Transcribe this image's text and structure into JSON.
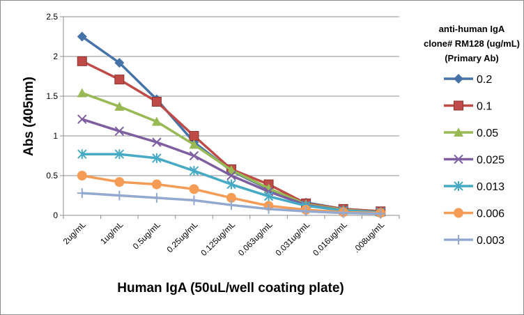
{
  "chart_data": {
    "type": "line",
    "title": "",
    "xlabel": "Human IgA (50uL/well coating plate)",
    "ylabel": "Abs (405nm)",
    "categories": [
      "2ug/mL",
      "1ug/mL",
      "0.5ug/mL",
      "0.25ug/mL",
      "0.125ug/mL",
      "0.063ug/mL",
      "0.031ug/mL",
      "0.016ug/mL",
      ".008ug/mL"
    ],
    "ylim": [
      0,
      2.5
    ],
    "yticks": [
      "0",
      "0.5",
      "1",
      "1.5",
      "2",
      "2.5"
    ],
    "grid": true,
    "legend": {
      "placement": "right",
      "title_lines": [
        "anti-human IgA",
        "clone# RM128 (ug/mL)",
        "(Primary Ab)"
      ]
    },
    "series": [
      {
        "name": "0.2",
        "color": "#4572A7",
        "marker": "diamond",
        "values": [
          2.25,
          1.92,
          1.46,
          0.92,
          0.56,
          0.33,
          0.16,
          0.08,
          0.05
        ]
      },
      {
        "name": "0.1",
        "color": "#BE4B48",
        "marker": "square",
        "values": [
          1.94,
          1.71,
          1.43,
          1.0,
          0.58,
          0.39,
          0.15,
          0.08,
          0.05
        ]
      },
      {
        "name": "0.05",
        "color": "#98B954",
        "marker": "triangle",
        "values": [
          1.54,
          1.37,
          1.18,
          0.89,
          0.57,
          0.34,
          0.14,
          0.07,
          0.04
        ]
      },
      {
        "name": "0.025",
        "color": "#7D5FA0",
        "marker": "x",
        "values": [
          1.21,
          1.06,
          0.92,
          0.75,
          0.5,
          0.3,
          0.13,
          0.06,
          0.04
        ]
      },
      {
        "name": "0.013",
        "color": "#46AAC4",
        "marker": "star",
        "values": [
          0.77,
          0.77,
          0.72,
          0.56,
          0.39,
          0.24,
          0.12,
          0.06,
          0.04
        ]
      },
      {
        "name": "0.006",
        "color": "#F59D56",
        "marker": "circle",
        "values": [
          0.5,
          0.42,
          0.39,
          0.33,
          0.22,
          0.12,
          0.07,
          0.04,
          0.03
        ]
      },
      {
        "name": "0.003",
        "color": "#93A9CF",
        "marker": "plus",
        "values": [
          0.28,
          0.25,
          0.22,
          0.19,
          0.13,
          0.08,
          0.05,
          0.03,
          0.02
        ]
      }
    ]
  }
}
